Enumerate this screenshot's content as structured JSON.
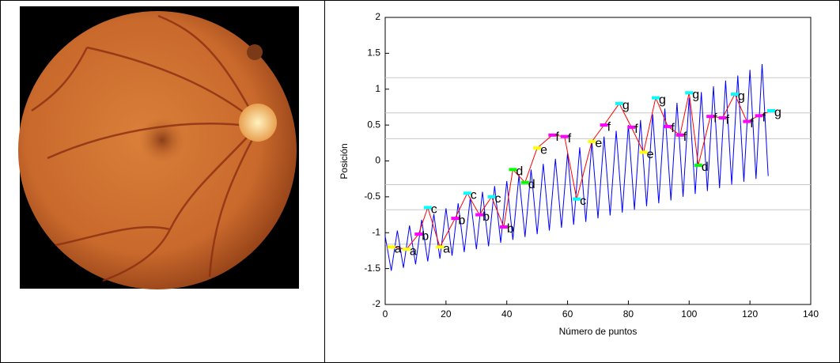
{
  "chart_data": {
    "type": "line",
    "xlabel": "Número de puntos",
    "ylabel": "Posición",
    "xlim": [
      0,
      140
    ],
    "ylim": [
      -2,
      2
    ],
    "xticks": [
      0,
      20,
      40,
      60,
      80,
      100,
      120,
      140
    ],
    "yticks": [
      -2,
      -1.5,
      -1,
      -0.5,
      0,
      0.5,
      1,
      1.5,
      2
    ],
    "hlines": [
      1.16,
      0.67,
      0.31,
      -0.33,
      -0.68,
      -1.16
    ],
    "hline_color": "#c8c8c8",
    "series": [
      {
        "color": "#0000ff",
        "x": [
          0,
          2,
          4,
          6,
          8,
          10,
          12,
          14,
          16,
          18,
          20,
          22,
          24,
          26,
          28,
          30,
          32,
          34,
          36,
          38,
          40,
          42,
          44,
          46,
          48,
          50,
          52,
          54,
          56,
          58,
          60,
          62,
          64,
          66,
          68,
          70,
          72,
          74,
          76,
          78,
          80,
          82,
          84,
          86,
          88,
          90,
          92,
          94,
          96,
          98,
          100,
          102,
          104,
          106,
          108,
          110,
          112,
          114,
          116,
          118,
          120,
          122,
          124,
          126
        ],
        "values": [
          -1.05,
          -1.53,
          -0.97,
          -1.49,
          -0.9,
          -1.44,
          -0.82,
          -1.4,
          -0.74,
          -1.36,
          -0.66,
          -1.32,
          -0.59,
          -1.27,
          -0.51,
          -1.23,
          -0.43,
          -1.19,
          -0.35,
          -1.14,
          -0.28,
          -1.1,
          -0.2,
          -1.06,
          -0.12,
          -1.02,
          -0.04,
          -0.97,
          0.03,
          -0.93,
          0.11,
          -0.89,
          0.19,
          -0.85,
          0.26,
          -0.8,
          0.34,
          -0.76,
          0.42,
          -0.72,
          0.5,
          -0.68,
          0.57,
          -0.63,
          0.65,
          -0.59,
          0.73,
          -0.55,
          0.81,
          -0.5,
          0.88,
          -0.46,
          0.96,
          -0.42,
          1.04,
          -0.38,
          1.12,
          -0.33,
          1.19,
          -0.29,
          1.27,
          -0.25,
          1.35,
          -0.21
        ]
      },
      {
        "color": "#ff0000",
        "x": [
          2,
          7,
          11,
          14,
          18,
          23,
          27,
          31,
          35,
          39,
          42,
          46,
          50,
          55,
          59,
          63,
          68,
          72,
          77,
          81,
          85,
          89,
          93,
          97,
          100,
          103,
          107,
          111,
          115,
          119,
          123,
          127
        ],
        "values": [
          -1.2,
          -1.23,
          -1.02,
          -0.65,
          -1.2,
          -0.8,
          -0.45,
          -0.75,
          -0.5,
          -0.92,
          -0.12,
          -0.3,
          0.18,
          0.36,
          0.34,
          -0.53,
          0.27,
          0.5,
          0.8,
          0.47,
          0.12,
          0.88,
          0.48,
          0.36,
          0.95,
          -0.06,
          0.62,
          0.6,
          0.93,
          0.55,
          0.63,
          0.7
        ],
        "labels": [
          "a",
          "a",
          "b",
          "c",
          "a",
          "b",
          "c",
          "b",
          "c",
          "b",
          "d",
          "d",
          "e",
          "f",
          "f",
          "c",
          "e",
          "f",
          "g",
          "f",
          "e",
          "g",
          "f",
          "f",
          "g",
          "d",
          "f",
          "f",
          "g",
          "f",
          "f",
          "g"
        ],
        "label_colors": {
          "a": "#ffff00",
          "b": "#ff00ff",
          "c": "#00ffff",
          "d": "#00ff00",
          "e": "#ffff00",
          "f": "#ff00ff",
          "g": "#00ffff"
        }
      }
    ]
  }
}
